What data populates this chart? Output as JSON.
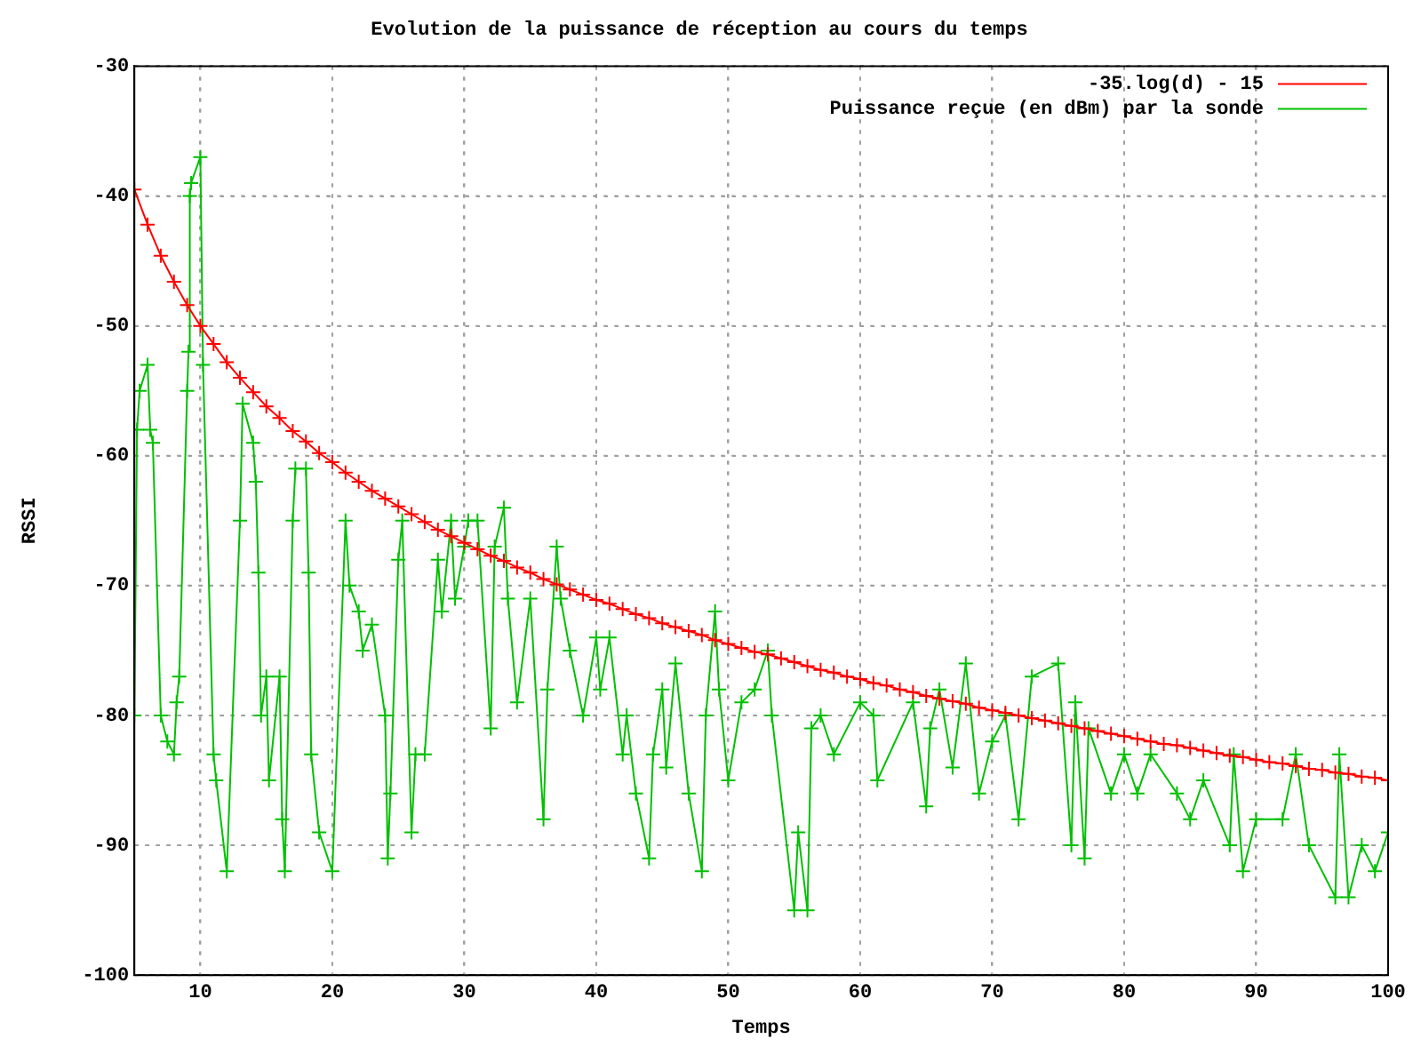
{
  "chart_data": {
    "type": "line",
    "title": "Evolution de la puissance de réception au cours du temps",
    "xlabel": "Temps",
    "ylabel": "RSSI",
    "xlim": [
      5,
      100
    ],
    "xticks": [
      10,
      20,
      30,
      40,
      50,
      60,
      70,
      80,
      90,
      100
    ],
    "ylim": [
      -100,
      -30
    ],
    "yticks": [
      -100,
      -90,
      -80,
      -70,
      -60,
      -50,
      -40,
      -30
    ],
    "grid": true,
    "legend": "top right",
    "line_style": "solid",
    "series": [
      {
        "name": "-35.log(d) - 15",
        "color": "#ff0000",
        "marker": "cross",
        "x": [
          5,
          6,
          7,
          8,
          9,
          10,
          11,
          12,
          13,
          14,
          15,
          16,
          17,
          18,
          19,
          20,
          21,
          22,
          23,
          24,
          25,
          26,
          27,
          28,
          29,
          30,
          31,
          32,
          33,
          34,
          35,
          36,
          37,
          38,
          39,
          40,
          41,
          42,
          43,
          44,
          45,
          46,
          47,
          48,
          49,
          50,
          51,
          52,
          53,
          54,
          55,
          56,
          57,
          58,
          59,
          60,
          61,
          62,
          63,
          64,
          65,
          66,
          67,
          68,
          69,
          70,
          71,
          72,
          73,
          74,
          75,
          76,
          77,
          78,
          79,
          80,
          81,
          82,
          83,
          84,
          85,
          86,
          87,
          88,
          89,
          90,
          91,
          92,
          93,
          94,
          95,
          96,
          97,
          98,
          99,
          100
        ],
        "values": [
          -39.5,
          -42.2,
          -44.6,
          -46.6,
          -48.4,
          -50,
          -51.4,
          -52.8,
          -54.0,
          -55.1,
          -56.2,
          -57.1,
          -58.1,
          -58.9,
          -59.8,
          -60.5,
          -61.3,
          -62.0,
          -62.7,
          -63.3,
          -63.9,
          -64.5,
          -65.1,
          -65.7,
          -66.2,
          -66.7,
          -67.2,
          -67.7,
          -68.1,
          -68.6,
          -69.0,
          -69.5,
          -69.9,
          -70.3,
          -70.7,
          -71.1,
          -71.4,
          -71.8,
          -72.2,
          -72.5,
          -72.9,
          -73.2,
          -73.5,
          -73.8,
          -74.2,
          -74.5,
          -74.8,
          -75.1,
          -75.3,
          -75.6,
          -75.9,
          -76.2,
          -76.5,
          -76.7,
          -77.0,
          -77.2,
          -77.5,
          -77.7,
          -78.0,
          -78.2,
          -78.5,
          -78.7,
          -78.9,
          -79.1,
          -79.4,
          -79.6,
          -79.8,
          -80.0,
          -80.2,
          -80.4,
          -80.6,
          -80.8,
          -81.0,
          -81.2,
          -81.4,
          -81.6,
          -81.8,
          -82.0,
          -82.2,
          -82.3,
          -82.5,
          -82.7,
          -82.9,
          -83.1,
          -83.2,
          -83.4,
          -83.6,
          -83.7,
          -83.9,
          -84.1,
          -84.2,
          -84.4,
          -84.5,
          -84.7,
          -84.8,
          -85
        ]
      },
      {
        "name": "Puissance reçue (en dBm) par la sonde",
        "color": "#00c000",
        "marker": "cross",
        "x": [
          5,
          5.2,
          5.4,
          6,
          6.2,
          6.4,
          7,
          7.5,
          8,
          8.2,
          8.4,
          9,
          9.1,
          9.2,
          9.3,
          10,
          10.2,
          11,
          11.2,
          12,
          13,
          13.2,
          14,
          14.2,
          14.4,
          14.6,
          15,
          15.2,
          16,
          16.2,
          16.4,
          17,
          17.2,
          18,
          18.2,
          18.4,
          19,
          20,
          21,
          21.3,
          22,
          22.3,
          23,
          24,
          24.2,
          24.4,
          25,
          25.3,
          26,
          26.3,
          27,
          28,
          28.3,
          29,
          29.3,
          30,
          30.3,
          31,
          32,
          32.3,
          33,
          33.3,
          34,
          35,
          36,
          36.3,
          37,
          37.3,
          38,
          39,
          40,
          40.3,
          41,
          42,
          42.3,
          43,
          44,
          44.3,
          45,
          45.3,
          46,
          47,
          48,
          48.3,
          49,
          49.3,
          50,
          51,
          52,
          53,
          53.3,
          55,
          55.3,
          56,
          56.3,
          57,
          58,
          60,
          61,
          61.3,
          64,
          65,
          65.3,
          66,
          67,
          68,
          69,
          70,
          71,
          72,
          73,
          75,
          76,
          76.3,
          77,
          77.3,
          79,
          80,
          81,
          82,
          84,
          85,
          86,
          88,
          88.3,
          89,
          90,
          92,
          93,
          94,
          96,
          96.3,
          97,
          98,
          99,
          100
        ],
        "values": [
          -80,
          -58,
          -55,
          -53,
          -58,
          -59,
          -80,
          -82,
          -83,
          -79,
          -77,
          -55,
          -52,
          -40,
          -39,
          -37,
          -53,
          -83,
          -85,
          -92,
          -65,
          -56,
          -59,
          -62,
          -69,
          -80,
          -77,
          -85,
          -77,
          -88,
          -92,
          -65,
          -61,
          -61,
          -69,
          -83,
          -89,
          -92,
          -65,
          -70,
          -72,
          -75,
          -73,
          -80,
          -91,
          -86,
          -68,
          -65,
          -89,
          -83,
          -83,
          -68,
          -72,
          -65,
          -71,
          -67,
          -65,
          -65,
          -81,
          -67,
          -64,
          -71,
          -79,
          -71,
          -88,
          -78,
          -67,
          -71,
          -75,
          -80,
          -74,
          -78,
          -74,
          -83,
          -80,
          -86,
          -91,
          -83,
          -78,
          -84,
          -76,
          -86,
          -92,
          -80,
          -72,
          -78,
          -85,
          -79,
          -78,
          -75,
          -80,
          -95,
          -89,
          -95,
          -81,
          -80,
          -83,
          -79,
          -80,
          -85,
          -79,
          -87,
          -81,
          -78,
          -84,
          -76,
          -86,
          -82,
          -80,
          -88,
          -77,
          -76,
          -90,
          -79,
          -91,
          -81,
          -86,
          -83,
          -86,
          -83,
          -86,
          -88,
          -85,
          -90,
          -83,
          -92,
          -88,
          -88,
          -83,
          -90,
          -94,
          -83,
          -94,
          -90,
          -92,
          -89
        ]
      }
    ]
  }
}
